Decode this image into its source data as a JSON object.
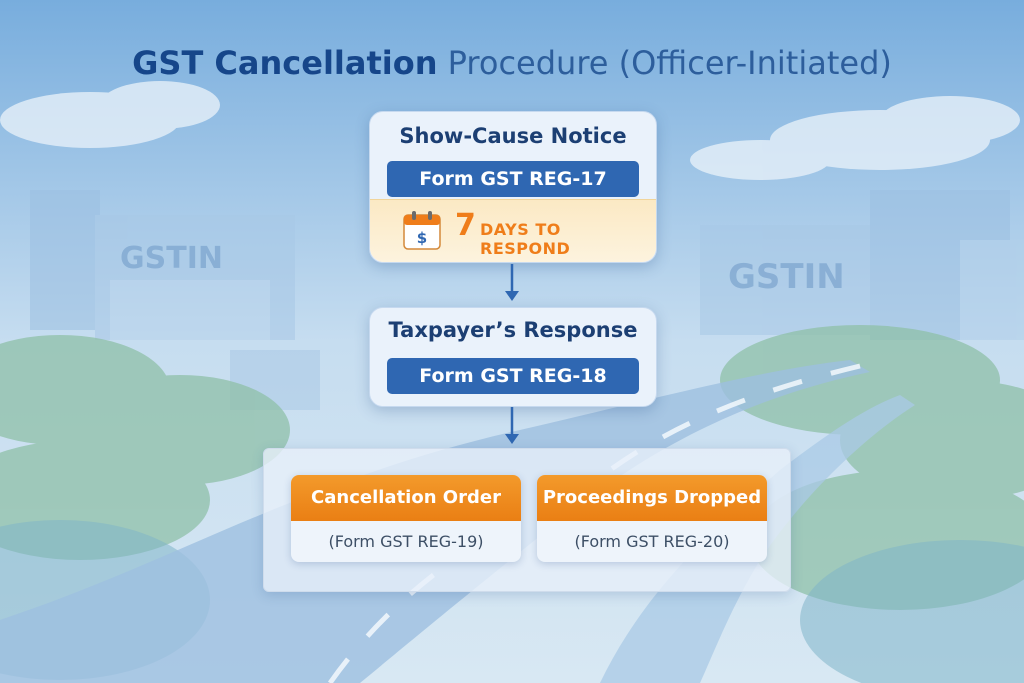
{
  "title": {
    "bold": "GST Cancellation",
    "rest": "Procedure (Officer-Initiated)"
  },
  "step1": {
    "heading": "Show-Cause Notice",
    "form": "Form GST REG-17",
    "deadline_number": "7",
    "deadline_text": "DAYS TO RESPOND",
    "icon": "calendar-icon"
  },
  "step2": {
    "heading": "Taxpayer’s Response",
    "form": "Form GST REG-18"
  },
  "outcomes": [
    {
      "label": "Cancellation Order",
      "form": "(Form GST REG-19)"
    },
    {
      "label": "Proceedings Dropped",
      "form": "(Form GST REG-20)"
    }
  ],
  "background_signs": {
    "left": "GSTIN",
    "right": "GSTIN"
  },
  "colors": {
    "primary": "#2f67b2",
    "accent": "#ef7d1a",
    "title": "#16468a"
  }
}
